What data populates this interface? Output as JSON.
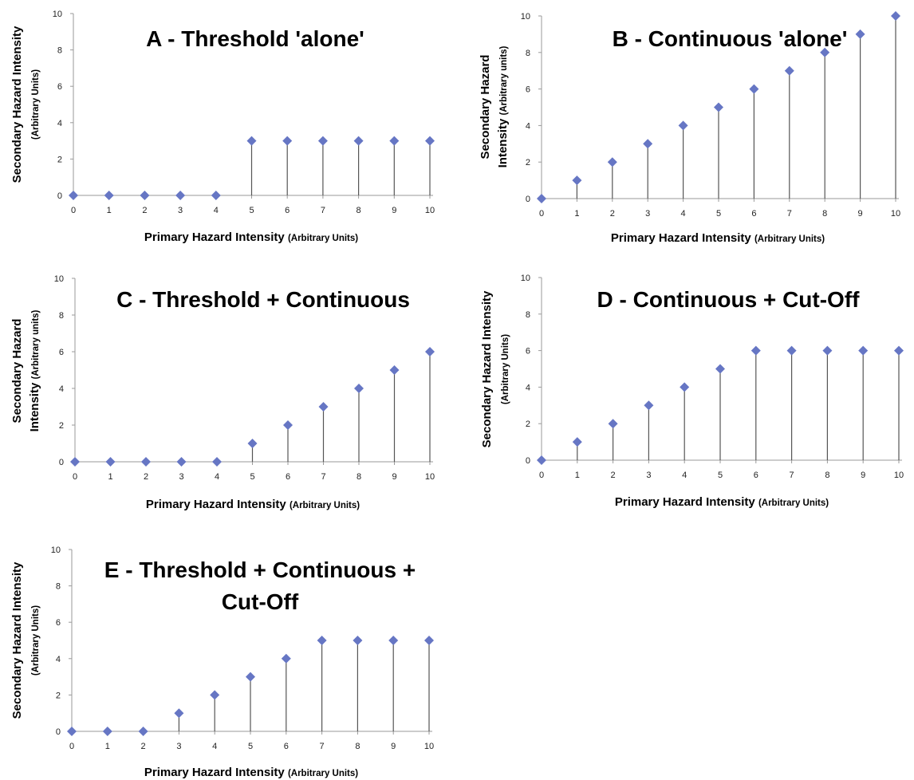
{
  "colors": {
    "marker": "#6676c4",
    "axis": "#9a9a9a",
    "stem": "#555555",
    "text": "#000000"
  },
  "chart_data": [
    {
      "type": "stem",
      "title": "A - Threshold 'alone'",
      "title_lines": [
        "A - Threshold 'alone'"
      ],
      "xlabel_main": "Primary Hazard Intensity",
      "xlabel_sub": "(Arbitrary Units)",
      "ylabel_lines": [
        {
          "main": "Secondary Hazard Intensity",
          "sub": ""
        },
        {
          "main": "",
          "sub": "(Arbitrary Units)"
        }
      ],
      "x": [
        0,
        1,
        2,
        3,
        4,
        5,
        6,
        7,
        8,
        9,
        10
      ],
      "values": [
        0,
        0,
        0,
        0,
        0,
        3,
        3,
        3,
        3,
        3,
        3
      ],
      "xticks": [
        "0",
        "1",
        "2",
        "3",
        "4",
        "5",
        "6",
        "7",
        "8",
        "9",
        "10"
      ],
      "yticks": [
        "0",
        "2",
        "4",
        "6",
        "8",
        "10"
      ],
      "xlim": [
        0,
        10
      ],
      "ylim": [
        0,
        10
      ],
      "grid": false
    },
    {
      "type": "stem",
      "title": "B - Continuous 'alone'",
      "title_lines": [
        "B - Continuous 'alone'"
      ],
      "xlabel_main": "Primary Hazard Intensity",
      "xlabel_sub": "(Arbitrary Units)",
      "ylabel_lines": [
        {
          "main": "Secondary Hazard",
          "sub": ""
        },
        {
          "main": "Intensity",
          "sub": "(Arbitrary  units)"
        }
      ],
      "x": [
        0,
        1,
        2,
        3,
        4,
        5,
        6,
        7,
        8,
        9,
        10
      ],
      "values": [
        0,
        1,
        2,
        3,
        4,
        5,
        6,
        7,
        8,
        9,
        10
      ],
      "xticks": [
        "0",
        "1",
        "2",
        "3",
        "4",
        "5",
        "6",
        "7",
        "8",
        "9",
        "10"
      ],
      "yticks": [
        "0",
        "2",
        "4",
        "6",
        "8",
        "10"
      ],
      "xlim": [
        0,
        10
      ],
      "ylim": [
        0,
        10
      ],
      "grid": false
    },
    {
      "type": "stem",
      "title": "C - Threshold + Continuous",
      "title_lines": [
        "C - Threshold + Continuous"
      ],
      "xlabel_main": "Primary Hazard Intensity",
      "xlabel_sub": "(Arbitrary Units)",
      "ylabel_lines": [
        {
          "main": "Secondary Hazard",
          "sub": ""
        },
        {
          "main": "Intensity",
          "sub": "(Arbitrary  units)"
        }
      ],
      "x": [
        0,
        1,
        2,
        3,
        4,
        5,
        6,
        7,
        8,
        9,
        10
      ],
      "values": [
        0,
        0,
        0,
        0,
        0,
        1,
        2,
        3,
        4,
        5,
        6
      ],
      "xticks": [
        "0",
        "1",
        "2",
        "3",
        "4",
        "5",
        "6",
        "7",
        "8",
        "9",
        "10"
      ],
      "yticks": [
        "0",
        "2",
        "4",
        "6",
        "8",
        "10"
      ],
      "xlim": [
        0,
        10
      ],
      "ylim": [
        0,
        10
      ],
      "grid": false
    },
    {
      "type": "stem",
      "title": "D - Continuous + Cut-Off",
      "title_lines": [
        "D - Continuous + Cut-Off"
      ],
      "xlabel_main": "Primary Hazard Intensity",
      "xlabel_sub": "(Arbitrary Units)",
      "ylabel_lines": [
        {
          "main": "Secondary Hazard Intensity",
          "sub": ""
        },
        {
          "main": "",
          "sub": "(Arbitrary Units)"
        }
      ],
      "x": [
        0,
        1,
        2,
        3,
        4,
        5,
        6,
        7,
        8,
        9,
        10
      ],
      "values": [
        0,
        1,
        2,
        3,
        4,
        5,
        6,
        6,
        6,
        6,
        6
      ],
      "xticks": [
        "0",
        "1",
        "2",
        "3",
        "4",
        "5",
        "6",
        "7",
        "8",
        "9",
        "10"
      ],
      "yticks": [
        "0",
        "2",
        "4",
        "6",
        "8",
        "10"
      ],
      "xlim": [
        0,
        10
      ],
      "ylim": [
        0,
        10
      ],
      "grid": false
    },
    {
      "type": "stem",
      "title": "E - Threshold + Continuous + Cut-Off",
      "title_lines": [
        "E - Threshold + Continuous +",
        "Cut-Off"
      ],
      "xlabel_main": "Primary Hazard Intensity",
      "xlabel_sub": "(Arbitrary Units)",
      "ylabel_lines": [
        {
          "main": "Secondary Hazard Intensity",
          "sub": ""
        },
        {
          "main": "",
          "sub": "(Arbitrary Units)"
        }
      ],
      "x": [
        0,
        1,
        2,
        3,
        4,
        5,
        6,
        7,
        8,
        9,
        10
      ],
      "values": [
        0,
        0,
        0,
        1,
        2,
        3,
        4,
        5,
        5,
        5,
        5
      ],
      "xticks": [
        "0",
        "1",
        "2",
        "3",
        "4",
        "5",
        "6",
        "7",
        "8",
        "9",
        "10"
      ],
      "yticks": [
        "0",
        "2",
        "4",
        "6",
        "8",
        "10"
      ],
      "xlim": [
        0,
        10
      ],
      "ylim": [
        0,
        10
      ],
      "grid": false
    }
  ]
}
